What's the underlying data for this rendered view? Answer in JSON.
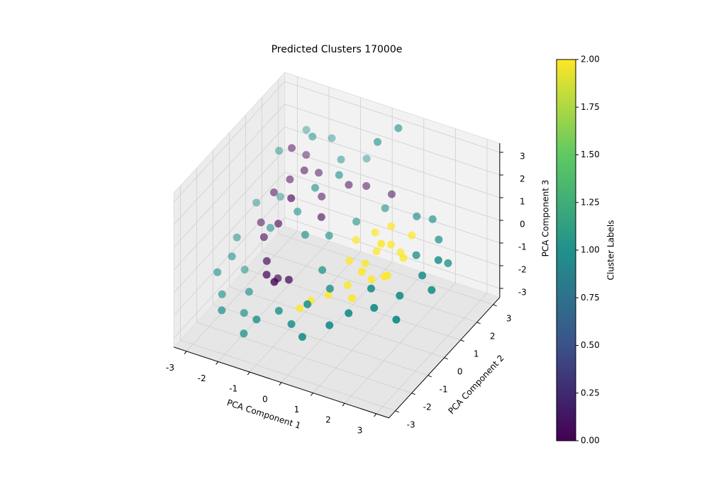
{
  "chart_data": {
    "type": "scatter3d",
    "title": "Predicted Clusters 17000e",
    "x_label": "PCA Component 1",
    "y_label": "PCA Component 2",
    "z_label": "PCA Component 3",
    "xlim": [
      -3.4,
      3.4
    ],
    "ylim": [
      -3.4,
      3.4
    ],
    "zlim": [
      -3.4,
      3.4
    ],
    "xticks": [
      -3,
      -2,
      -1,
      0,
      1,
      2,
      3
    ],
    "yticks": [
      -3,
      -2,
      -1,
      0,
      1,
      2,
      3
    ],
    "zticks": [
      -3,
      -2,
      -1,
      0,
      1,
      2,
      3
    ],
    "grid": true,
    "colormap": [
      "#440154",
      "#3b528b",
      "#21918c",
      "#5ec962",
      "#fde725"
    ],
    "colorbar": {
      "label": "Cluster Labels",
      "clim": [
        0,
        2
      ],
      "ticks": [
        {
          "value": 0,
          "label": "0.00"
        },
        {
          "value": 0.25,
          "label": "0.25"
        },
        {
          "value": 0.5,
          "label": "0.50"
        },
        {
          "value": 0.75,
          "label": "0.75"
        },
        {
          "value": 1,
          "label": "1.00"
        },
        {
          "value": 1.25,
          "label": "1.25"
        },
        {
          "value": 1.5,
          "label": "1.50"
        },
        {
          "value": 1.75,
          "label": "1.75"
        },
        {
          "value": 2,
          "label": "2.00"
        }
      ]
    },
    "points": {
      "x": [
        -2.1,
        -1.8,
        -2.4,
        -1.5,
        -2.0,
        -1.2,
        -0.6,
        -0.2,
        -2.5,
        -2.2,
        -1.9,
        -1.6,
        -1.4,
        -1.2,
        -1.8,
        -1.0,
        0.5,
        -0.9,
        -2.3,
        -1.7,
        1.0,
        1.3,
        0.8,
        1.5,
        1.2,
        0.6,
        0.2,
        -0.2,
        1.7,
        1.1,
        0.9,
        1.4,
        0.4,
        1.8,
        0.7,
        -0.4,
        1.0,
        1.6,
        0.3,
        1.2,
        -2.8,
        -2.6,
        -2.2,
        -1.5,
        -1.0,
        -0.5,
        0.0,
        0.4,
        -2.9,
        -3.0,
        -2.7,
        -2.4,
        -1.9,
        -1.3,
        -0.8,
        -0.3,
        0.2,
        0.8,
        1.2,
        1.8,
        2.3,
        2.6,
        2.8,
        2.4,
        2.0,
        1.6,
        2.9,
        3.0,
        -2.5,
        -2.0,
        -1.0,
        -0.5,
        0.0,
        -1.5,
        -2.3,
        -1.8,
        -1.2,
        -0.2,
        0.3,
        1.5,
        2.1,
        -2.8,
        -0.7,
        0.6,
        2.5,
        -1.6,
        -2.1,
        0.0
      ],
      "y": [
        1.2,
        1.5,
        0.8,
        1.8,
        2.0,
        1.4,
        1.9,
        2.2,
        0.2,
        -0.2,
        0.1,
        -1.2,
        -0.9,
        -1.5,
        -0.8,
        -1.0,
        2.4,
        0.8,
        1.7,
        0.5,
        0.5,
        0.8,
        0.2,
        1.0,
        -0.2,
        -0.5,
        -0.9,
        -1.2,
        1.3,
        1.2,
        -0.8,
        0.2,
        0.0,
        0.6,
        1.0,
        -1.5,
        -0.4,
        0.0,
        0.6,
        0.4,
        0.5,
        1.5,
        2.4,
        2.6,
        2.2,
        2.8,
        2.5,
        3.0,
        -0.5,
        -1.5,
        -1.8,
        -2.4,
        -2.0,
        -2.4,
        -2.0,
        -2.2,
        -2.5,
        -2.0,
        -1.6,
        -1.2,
        -0.6,
        0.2,
        0.8,
        1.6,
        2.0,
        1.8,
        1.2,
        0.0,
        -0.8,
        -1.5,
        0.0,
        0.5,
        1.2,
        0.5,
        1.0,
        2.0,
        1.0,
        -0.5,
        -1.0,
        -0.8,
        0.8,
        -1.0,
        1.5,
        1.8,
        -1.2,
        -2.6,
        0.0,
        -1.8
      ],
      "z": [
        1.0,
        1.3,
        0.6,
        1.1,
        1.5,
        0.5,
        0.9,
        0.8,
        -0.3,
        -0.5,
        0.0,
        -1.1,
        -1.4,
        -1.0,
        -0.9,
        -1.2,
        0.6,
        0.2,
        1.9,
        0.9,
        -0.2,
        0.0,
        -0.6,
        -0.4,
        -0.8,
        -1.1,
        -1.4,
        -1.6,
        0.2,
        0.4,
        -1.3,
        -0.9,
        -0.5,
        -0.2,
        0.1,
        -1.8,
        -0.4,
        -0.6,
        -0.1,
        0.3,
        0.2,
        1.8,
        2.2,
        2.0,
        1.6,
        1.4,
        2.6,
        3.0,
        -0.6,
        -1.4,
        -2.0,
        -2.1,
        -2.3,
        -2.0,
        -1.7,
        -1.9,
        -2.0,
        -1.6,
        -1.2,
        -1.0,
        -0.7,
        -0.3,
        0.0,
        0.1,
        0.5,
        0.6,
        -0.4,
        -0.6,
        -1.6,
        -1.8,
        0.0,
        -0.2,
        0.1,
        0.4,
        0.3,
        2.4,
        1.2,
        -0.8,
        -1.0,
        -0.6,
        -0.1,
        -1.0,
        1.6,
        0.5,
        -1.2,
        -2.6,
        -0.2,
        -1.2
      ],
      "c": [
        0,
        0,
        0,
        0,
        0,
        0,
        0,
        0,
        0,
        0,
        0,
        0,
        0,
        0,
        0,
        0,
        0,
        0,
        0,
        0,
        2,
        2,
        2,
        2,
        2,
        2,
        2,
        2,
        2,
        2,
        2,
        2,
        2,
        2,
        2,
        2,
        2,
        2,
        2,
        2,
        1,
        1,
        1,
        1,
        1,
        1,
        1,
        1,
        1,
        1,
        1,
        1,
        1,
        1,
        1,
        1,
        1,
        1,
        1,
        1,
        1,
        1,
        1,
        1,
        1,
        1,
        1,
        1,
        1,
        1,
        1,
        1,
        1,
        1,
        1,
        1,
        1,
        1,
        1,
        1,
        1,
        1,
        1,
        1,
        1,
        1,
        1,
        1
      ]
    }
  }
}
